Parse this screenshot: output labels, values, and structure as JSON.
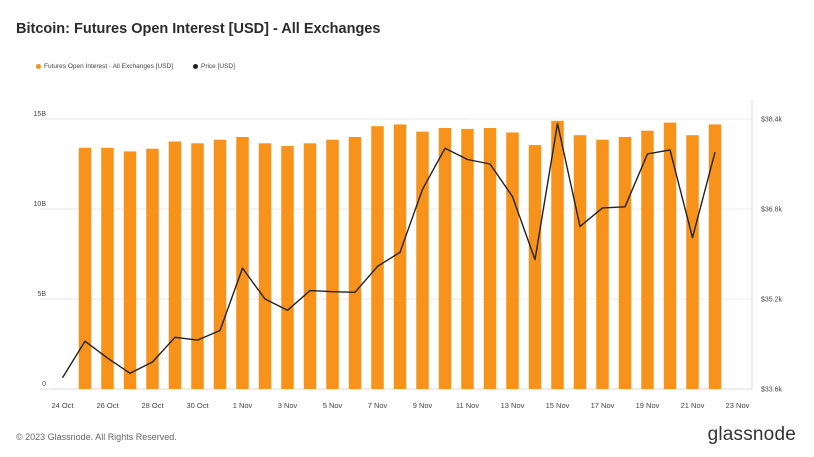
{
  "title": "Bitcoin: Futures Open Interest [USD] - All Exchanges",
  "legend": {
    "oi_label": "Futures Open Interest - All Exchanges [USD]",
    "price_label": "Price [USD]"
  },
  "footer": "© 2023 Glassnode. All Rights Reserved.",
  "brand": "glassnode",
  "colors": {
    "bars": "#f7931a",
    "price": "#222222",
    "grid": "#e6e6e6"
  },
  "chart_data": {
    "type": "bar",
    "title": "Bitcoin: Futures Open Interest [USD] - All Exchanges",
    "left_axis": {
      "ticks": [
        0,
        5,
        10,
        15
      ],
      "tick_labels": [
        "0",
        "5B",
        "10B",
        "15B"
      ],
      "ylim": [
        0,
        15
      ],
      "unit": "B USD"
    },
    "right_axis": {
      "ticks": [
        33600,
        35200,
        36800,
        38400
      ],
      "tick_labels": [
        "$33.6k",
        "$35.2k",
        "$36.8k",
        "$38.4k"
      ],
      "ylim": [
        33600,
        38400
      ]
    },
    "x_tick_labels": [
      "24 Oct",
      "26 Oct",
      "28 Oct",
      "30 Oct",
      "1 Nov",
      "3 Nov",
      "5 Nov",
      "7 Nov",
      "9 Nov",
      "11 Nov",
      "13 Nov",
      "15 Nov",
      "17 Nov",
      "19 Nov",
      "21 Nov",
      "23 Nov"
    ],
    "dates": [
      "24 Oct",
      "25 Oct",
      "26 Oct",
      "27 Oct",
      "28 Oct",
      "29 Oct",
      "30 Oct",
      "31 Oct",
      "1 Nov",
      "2 Nov",
      "3 Nov",
      "4 Nov",
      "5 Nov",
      "6 Nov",
      "7 Nov",
      "8 Nov",
      "9 Nov",
      "10 Nov",
      "11 Nov",
      "12 Nov",
      "13 Nov",
      "14 Nov",
      "15 Nov",
      "16 Nov",
      "17 Nov",
      "18 Nov",
      "19 Nov",
      "20 Nov",
      "21 Nov",
      "22 Nov",
      "23 Nov"
    ],
    "series": [
      {
        "name": "Futures Open Interest - All Exchanges [USD]",
        "type": "bar",
        "axis": "left",
        "values": [
          null,
          13.4,
          13.4,
          13.2,
          13.35,
          13.75,
          13.65,
          13.85,
          14.0,
          13.65,
          13.5,
          13.65,
          13.85,
          14.0,
          14.6,
          14.7,
          14.3,
          14.5,
          14.45,
          14.5,
          14.25,
          13.55,
          14.9,
          14.1,
          13.85,
          14.0,
          14.35,
          14.8,
          14.1,
          14.7,
          null
        ]
      },
      {
        "name": "Price [USD]",
        "type": "line",
        "axis": "right",
        "values": [
          33800,
          34450,
          34150,
          33880,
          34080,
          34520,
          34470,
          34640,
          35750,
          35200,
          35000,
          35350,
          35330,
          35320,
          35780,
          36030,
          37150,
          37880,
          37680,
          37600,
          37020,
          35900,
          38320,
          36490,
          36820,
          36840,
          37780,
          37850,
          36290,
          37810,
          null
        ]
      }
    ]
  }
}
